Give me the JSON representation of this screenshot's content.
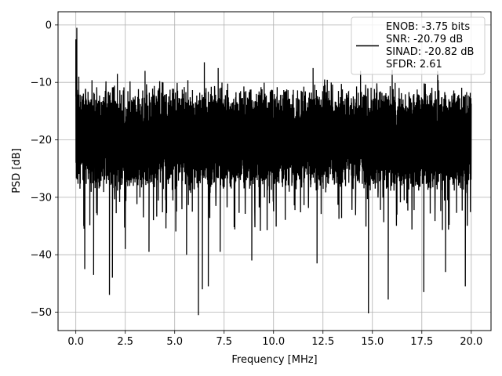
{
  "chart_data": {
    "type": "line",
    "xlabel": "Frequency [MHz]",
    "ylabel": "PSD [dB]",
    "xlim": [
      -0.9,
      21.0
    ],
    "ylim": [
      -53.2,
      2.3
    ],
    "xticks": [
      0.0,
      2.5,
      5.0,
      7.5,
      10.0,
      12.5,
      15.0,
      17.5,
      20.0
    ],
    "xtick_labels": [
      "0.0",
      "2.5",
      "5.0",
      "7.5",
      "10.0",
      "12.5",
      "15.0",
      "17.5",
      "20.0"
    ],
    "yticks": [
      0,
      -10,
      -20,
      -30,
      -40,
      -50
    ],
    "ytick_labels": [
      "0",
      "−10",
      "−20",
      "−30",
      "−40",
      "−50"
    ],
    "grid": true,
    "legend_position": "upper right",
    "series": [
      {
        "label_lines": [
          "ENOB: -3.75 bits",
          "SNR: -20.79 dB",
          "SINAD: -20.82 dB",
          "SFDR: 2.61"
        ],
        "color": "#000000",
        "x_range": [
          0.0,
          20.0
        ],
        "baseline_db": -20,
        "upper_envelope_db": -13,
        "lower_envelope_db": -27,
        "peaks": [
          {
            "x": 0.0,
            "y": -2.5
          },
          {
            "x": 0.05,
            "y": -0.5
          },
          {
            "x": 0.15,
            "y": -9.0
          },
          {
            "x": 2.1,
            "y": -8.5
          },
          {
            "x": 3.5,
            "y": -8.0
          },
          {
            "x": 6.5,
            "y": -6.5
          },
          {
            "x": 7.2,
            "y": -7.5
          },
          {
            "x": 12.0,
            "y": -7.5
          },
          {
            "x": 14.4,
            "y": -8.0
          },
          {
            "x": 16.0,
            "y": -7.8
          },
          {
            "x": 18.3,
            "y": -8.0
          }
        ],
        "troughs": [
          {
            "x": 0.4,
            "y": -35.0
          },
          {
            "x": 0.45,
            "y": -42.5
          },
          {
            "x": 0.9,
            "y": -43.5
          },
          {
            "x": 1.7,
            "y": -47.0
          },
          {
            "x": 1.85,
            "y": -44.0
          },
          {
            "x": 2.5,
            "y": -39.0
          },
          {
            "x": 3.7,
            "y": -39.5
          },
          {
            "x": 5.6,
            "y": -40.0
          },
          {
            "x": 6.2,
            "y": -50.5
          },
          {
            "x": 6.4,
            "y": -46.0
          },
          {
            "x": 6.7,
            "y": -45.5
          },
          {
            "x": 7.3,
            "y": -39.5
          },
          {
            "x": 8.9,
            "y": -41.0
          },
          {
            "x": 12.2,
            "y": -41.5
          },
          {
            "x": 14.8,
            "y": -50.2
          },
          {
            "x": 15.8,
            "y": -47.8
          },
          {
            "x": 17.6,
            "y": -46.5
          },
          {
            "x": 18.7,
            "y": -43.0
          },
          {
            "x": 19.7,
            "y": -45.5
          }
        ]
      }
    ]
  }
}
